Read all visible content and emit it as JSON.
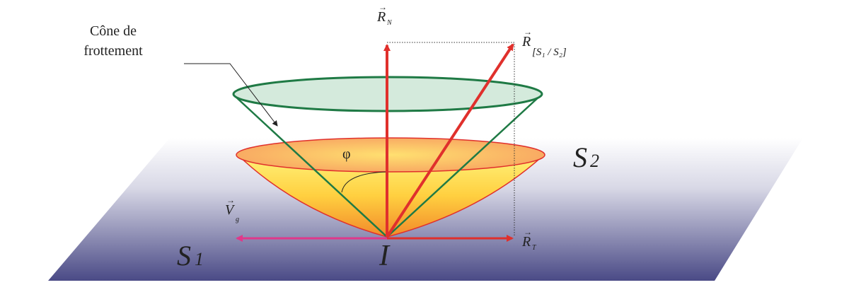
{
  "labels": {
    "cone_line1": "Cône de",
    "cone_line2": "frottement",
    "rn": "R",
    "rn_sub": "N",
    "rs": "R",
    "rs_sub": "[S₁ / S₂]",
    "rt": "R",
    "rt_sub": "T",
    "vg": "V",
    "vg_sub": "g",
    "phi": "φ",
    "s1": "S",
    "s1_sub": "1",
    "s2": "S",
    "s2_sub": "2",
    "point": "I"
  },
  "colors": {
    "forces": "#e0302c",
    "velocity": "#e0388a",
    "cone": "#1f7a45",
    "cone_fill": "#cfe8d8",
    "bowl_top": "#fff27a",
    "bowl_bottom": "#f28a2a",
    "plane_dark": "#4a4a86"
  }
}
